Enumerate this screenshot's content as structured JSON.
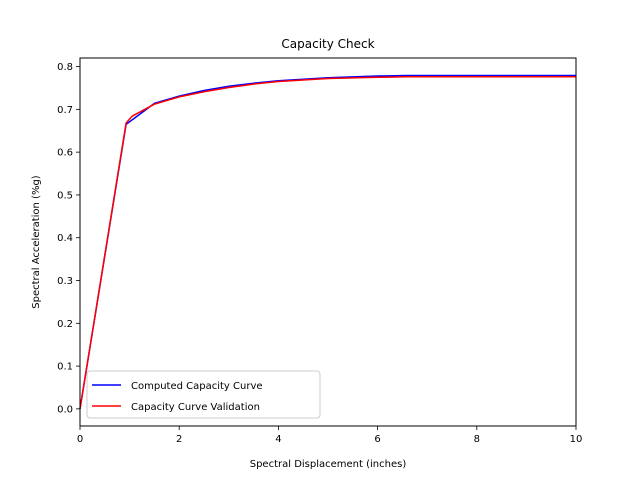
{
  "chart_data": {
    "type": "line",
    "title": "Capacity Check",
    "xlabel": "Spectral Displacement (inches)",
    "ylabel": "Spectral Acceleration (%g)",
    "xlim": [
      0,
      10
    ],
    "ylim": [
      -0.04,
      0.82
    ],
    "xticks": [
      0,
      2,
      4,
      6,
      8,
      10
    ],
    "yticks": [
      0.0,
      0.1,
      0.2,
      0.3,
      0.4,
      0.5,
      0.6,
      0.7,
      0.8
    ],
    "xtick_labels": [
      "0",
      "2",
      "4",
      "6",
      "8",
      "10"
    ],
    "ytick_labels": [
      "0.0",
      "0.1",
      "0.2",
      "0.3",
      "0.4",
      "0.5",
      "0.6",
      "0.7",
      "0.8"
    ],
    "grid": false,
    "legend_position": "lower-left",
    "series": [
      {
        "name": "Computed Capacity Curve",
        "color": "#0000ff",
        "x": [
          0,
          0.93,
          1.5,
          2.0,
          2.5,
          3.0,
          3.5,
          4.0,
          5.0,
          6.0,
          6.6,
          8.0,
          10.0
        ],
        "y": [
          0,
          0.665,
          0.714,
          0.731,
          0.744,
          0.754,
          0.761,
          0.767,
          0.774,
          0.778,
          0.779,
          0.779,
          0.779
        ]
      },
      {
        "name": "Capacity Curve Validation",
        "color": "#ff0000",
        "x": [
          0,
          0.93,
          1.05,
          1.5,
          2.0,
          2.5,
          3.0,
          3.5,
          4.0,
          5.0,
          6.0,
          6.6,
          8.0,
          10.0
        ],
        "y": [
          0,
          0.668,
          0.684,
          0.712,
          0.729,
          0.741,
          0.751,
          0.759,
          0.765,
          0.772,
          0.775,
          0.776,
          0.776,
          0.776
        ]
      }
    ]
  }
}
